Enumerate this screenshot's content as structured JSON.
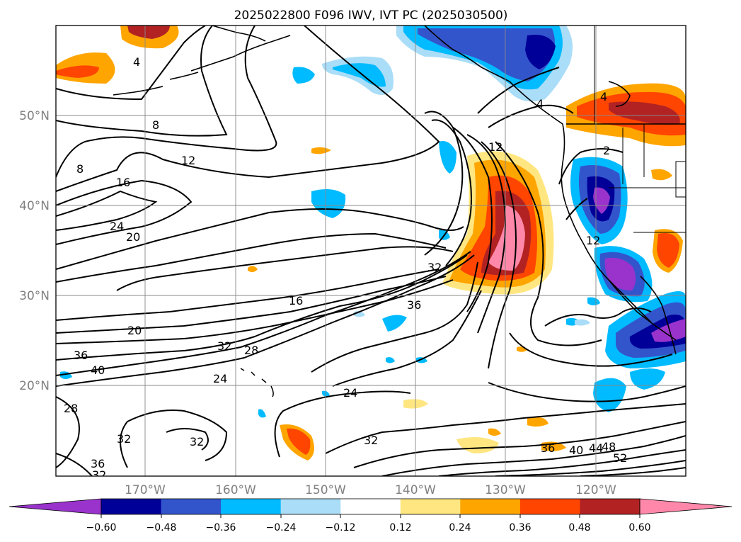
{
  "title": "2025022800 F096 IWV, IVT PC (2025030500)",
  "lon_labels": [
    "170°W",
    "160°W",
    "150°W",
    "140°W",
    "130°W",
    "120°W"
  ],
  "lat_labels": [
    "50°N",
    "40°N",
    "30°N",
    "20°N"
  ],
  "contour_labels": [
    "4",
    "8",
    "8",
    "12",
    "16",
    "24",
    "20",
    "16",
    "20",
    "36",
    "40",
    "32",
    "28",
    "24",
    "28",
    "32",
    "32",
    "36",
    "32",
    "24",
    "32",
    "36",
    "32",
    "36",
    "40",
    "44",
    "48",
    "52",
    "12",
    "12",
    "4",
    "4",
    "2"
  ],
  "colorbar": {
    "ticks": [
      "−0.60",
      "−0.48",
      "−0.36",
      "−0.24",
      "−0.12",
      "0.12",
      "0.24",
      "0.36",
      "0.48",
      "0.60"
    ],
    "colors": [
      "#9933cc",
      "#000099",
      "#3355cc",
      "#00bbff",
      "#aaddf7",
      "#ffffff",
      "#ffe680",
      "#ffa500",
      "#ff4500",
      "#b22222",
      "#ff88aa"
    ]
  }
}
